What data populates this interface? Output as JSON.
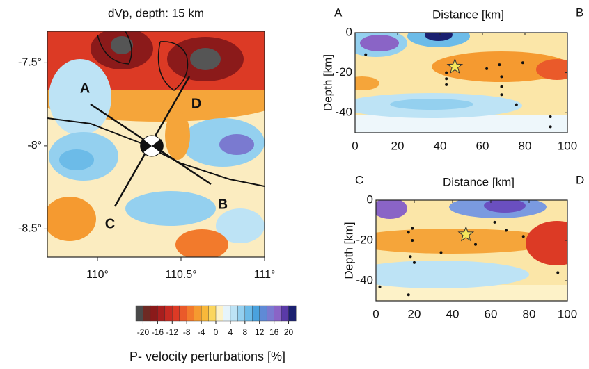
{
  "chart_data": [
    {
      "type": "contour",
      "title": "dVp, depth: 15 km",
      "xlim": [
        109.7,
        111.0
      ],
      "ylim": [
        -8.67,
        -7.31
      ],
      "xticks": [
        {
          "value": 110,
          "label": "110°"
        },
        {
          "value": 110.5,
          "label": "110.5°"
        },
        {
          "value": 111,
          "label": "111°"
        }
      ],
      "yticks": [
        {
          "value": -7.5,
          "label": "-7.5°"
        },
        {
          "value": -8,
          "label": "-8°"
        },
        {
          "value": -8.5,
          "label": "-8.5°"
        }
      ],
      "annotations": [
        "A",
        "B",
        "C",
        "D"
      ]
    },
    {
      "type": "section",
      "left_label": "A",
      "right_label": "B",
      "xlabel": "Distance [km]",
      "ylabel": "Depth [km]",
      "xlim": [
        0,
        100
      ],
      "ylim": [
        -50,
        0
      ],
      "xticks": [
        0,
        20,
        40,
        60,
        80,
        100
      ],
      "yticks": [
        {
          "value": 0,
          "label": "0"
        },
        {
          "value": -20,
          "label": "-20"
        },
        {
          "value": -40,
          "label": "-40"
        }
      ],
      "events": {
        "x": [
          5,
          43,
          43,
          43,
          62,
          68,
          69,
          69,
          69,
          76,
          79,
          92,
          92
        ],
        "y": [
          -11,
          -20,
          -23,
          -26,
          -18,
          -16,
          -22,
          -27,
          -31,
          -36,
          -15,
          -42,
          -47
        ]
      },
      "mainshock": {
        "x": 47,
        "y": -17
      }
    },
    {
      "type": "section",
      "left_label": "C",
      "right_label": "D",
      "xlabel": "Distance [km]",
      "ylabel": "Depth [km]",
      "xlim": [
        0,
        100
      ],
      "ylim": [
        -50,
        0
      ],
      "xticks": [
        0,
        20,
        40,
        60,
        80,
        100
      ],
      "yticks": [
        {
          "value": 0,
          "label": "0"
        },
        {
          "value": -20,
          "label": "-20"
        },
        {
          "value": -40,
          "label": "-40"
        }
      ],
      "events": {
        "x": [
          2,
          17,
          18,
          19,
          19,
          20,
          34,
          52,
          62,
          68,
          77,
          95,
          17
        ],
        "y": [
          -43,
          -16,
          -28,
          -14,
          -20,
          -31,
          -26,
          -22,
          -11,
          -15,
          -18,
          -36,
          -47
        ]
      },
      "mainshock": {
        "x": 47,
        "y": -17
      }
    },
    {
      "type": "colorbar",
      "xlabel": "P- velocity perturbations [%]",
      "xlim": [
        -22,
        22
      ],
      "xticks": [
        -20,
        -16,
        -12,
        -8,
        -4,
        0,
        4,
        8,
        12,
        16,
        20
      ],
      "colors": [
        "#4a4a4a",
        "#6e2a24",
        "#8b1a1a",
        "#a81e1e",
        "#c72a22",
        "#dc3a25",
        "#ea5a2a",
        "#f27a2c",
        "#f59a30",
        "#f8b83a",
        "#fbd65e",
        "#fdf2c8",
        "#e6f4fb",
        "#bde3f5",
        "#94d0ef",
        "#6cbbe8",
        "#4aa2de",
        "#5f8ad6",
        "#7a7ad0",
        "#8a64c6",
        "#5a3aa8",
        "#1a2070"
      ]
    }
  ]
}
